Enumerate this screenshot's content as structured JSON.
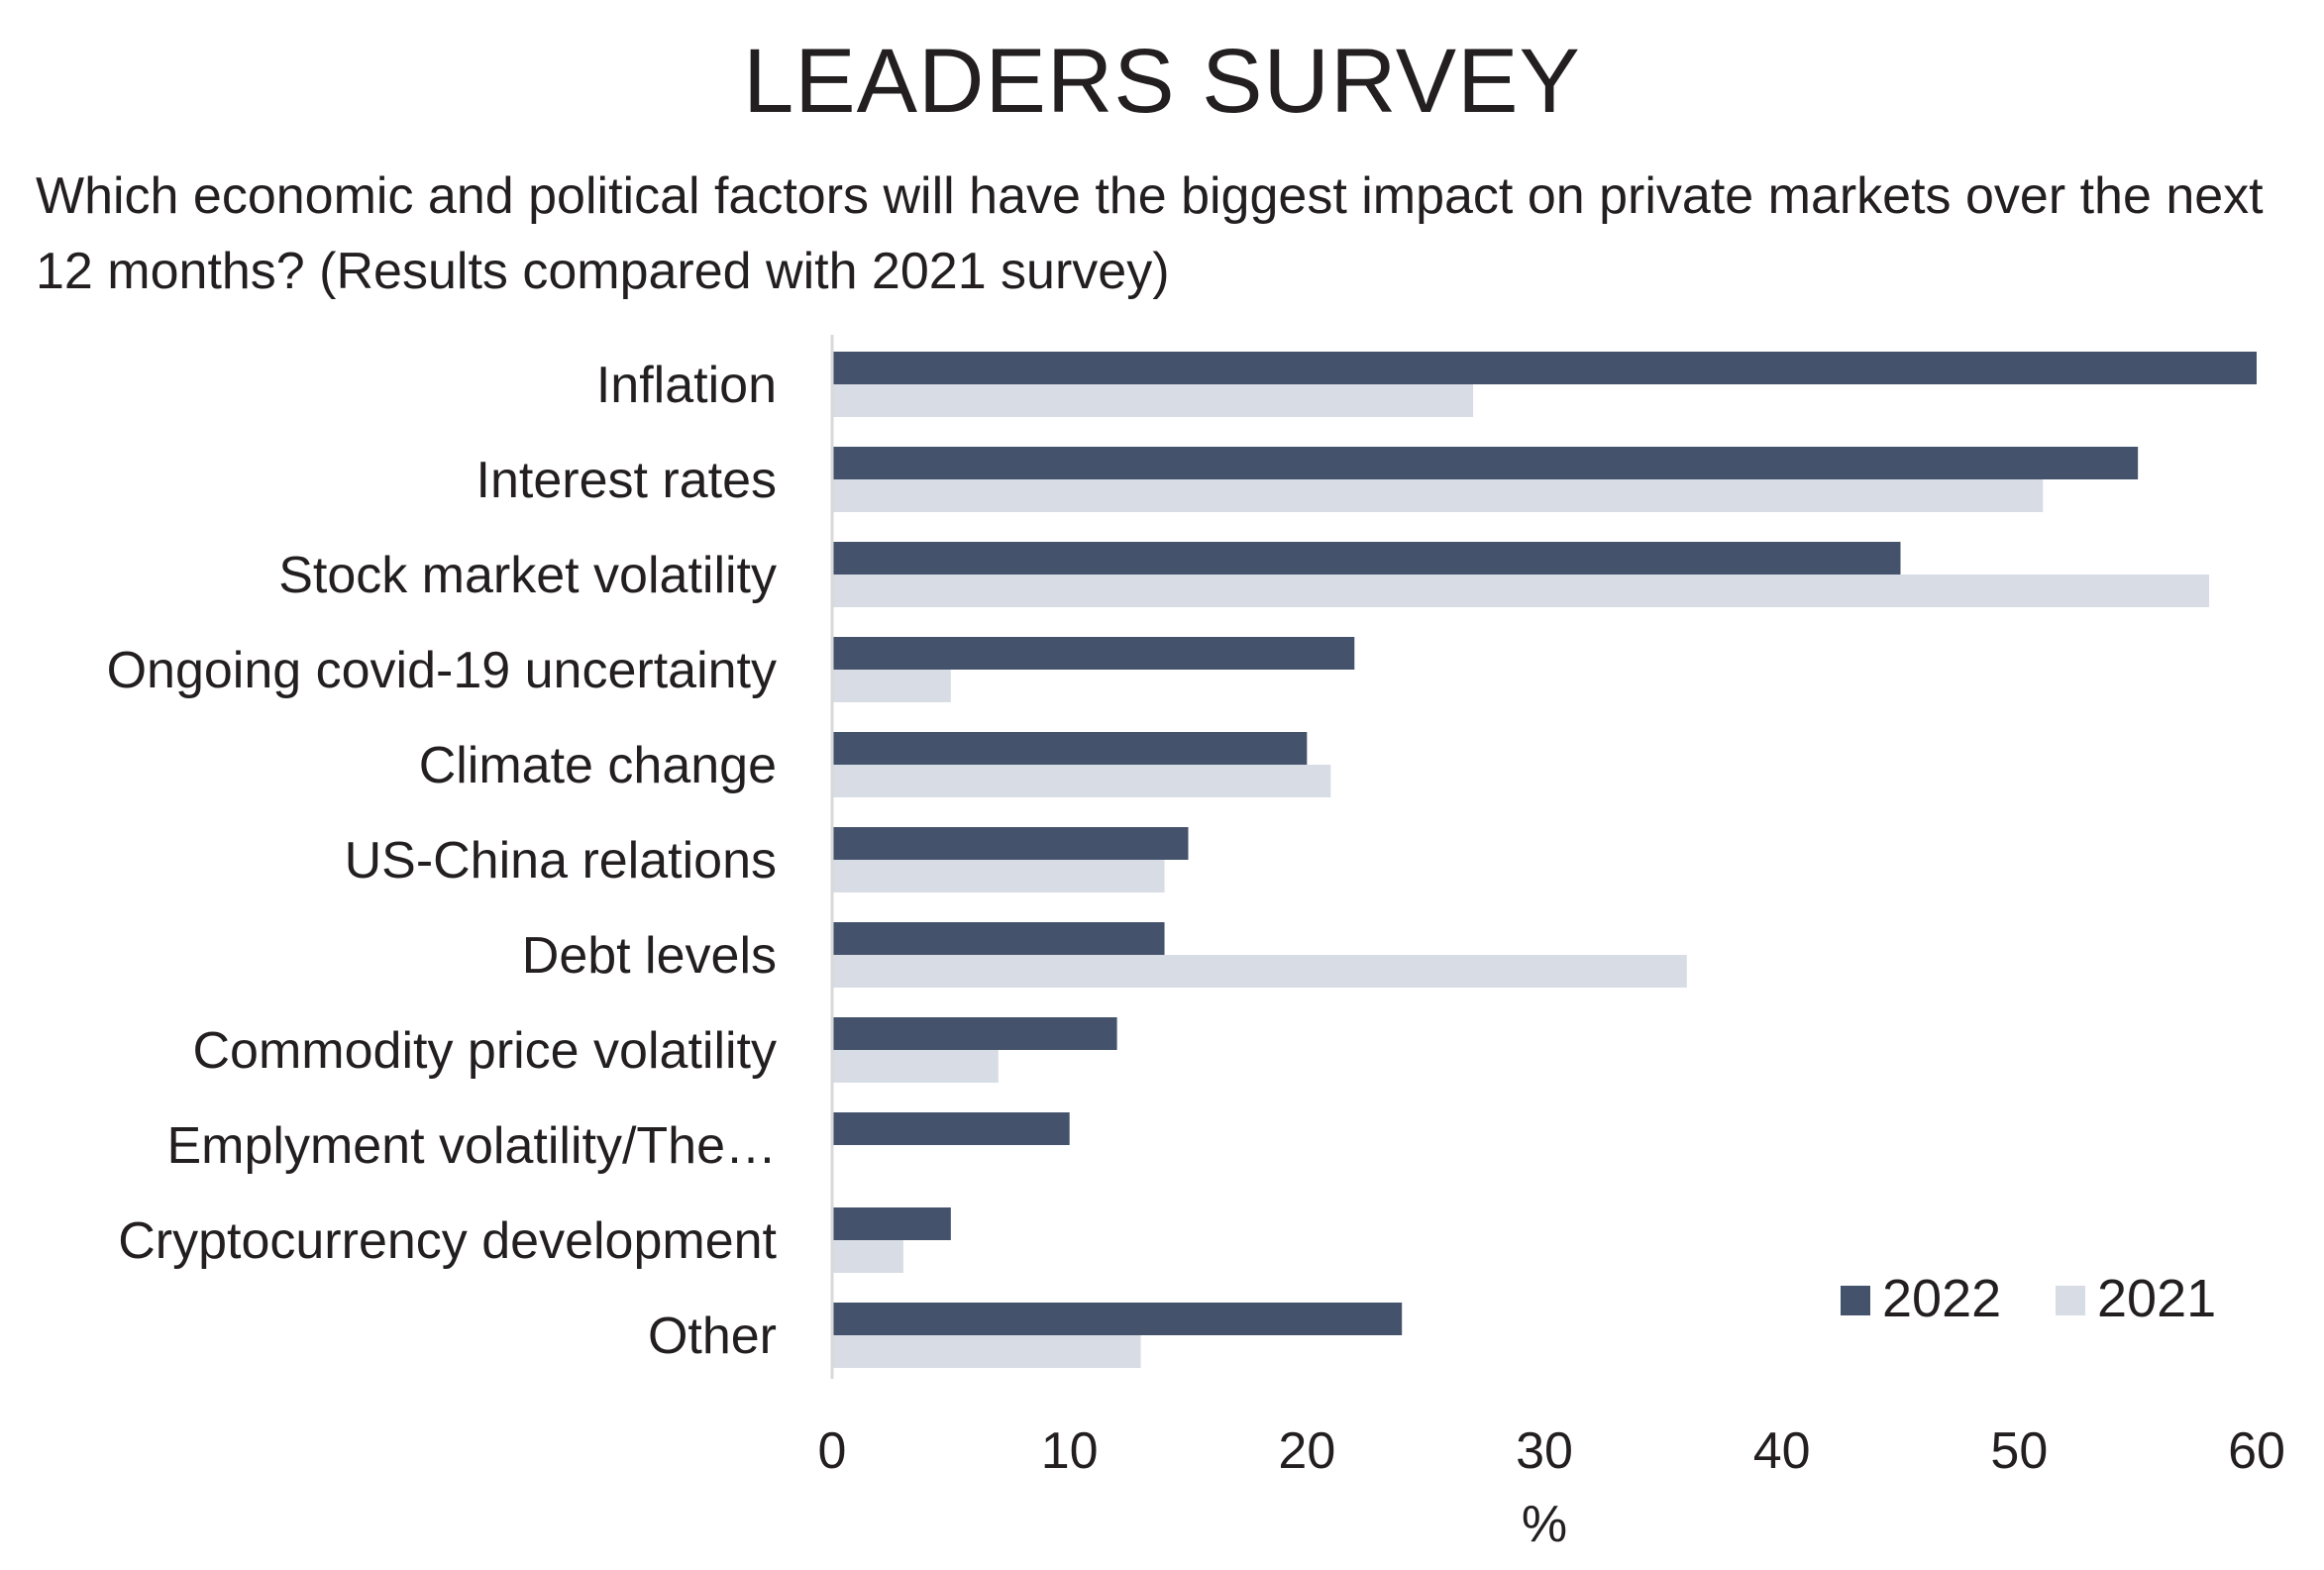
{
  "title": "LEADERS SURVEY",
  "subtitle": "Which economic and political factors will have the biggest impact on private markets over the next 12 months? (Results compared with 2021 survey)",
  "colors": {
    "series_2022": "#44536b",
    "series_2021": "#d7dce5",
    "axis": "#d9d9d9",
    "text": "#231f20"
  },
  "chart_data": {
    "type": "bar",
    "orientation": "horizontal",
    "categories": [
      "Inflation",
      "Interest rates",
      "Stock market volatility",
      "Ongoing covid-19 uncertainty",
      "Climate change",
      "US-China relations",
      "Debt levels",
      "Commodity price volatility",
      "Emplyment volatility/The…",
      "Cryptocurrency development",
      "Other"
    ],
    "series": [
      {
        "name": "2022",
        "values": [
          60,
          55,
          45,
          22,
          20,
          15,
          14,
          12,
          10,
          5,
          24
        ]
      },
      {
        "name": "2021",
        "values": [
          27,
          51,
          58,
          5,
          21,
          14,
          36,
          7,
          0,
          3,
          13
        ]
      }
    ],
    "xlabel": "%",
    "xlim": [
      0,
      60
    ],
    "xticks": [
      "0",
      "10",
      "20",
      "30",
      "40",
      "50",
      "60"
    ],
    "grid": false,
    "legend": "bottom-right"
  }
}
